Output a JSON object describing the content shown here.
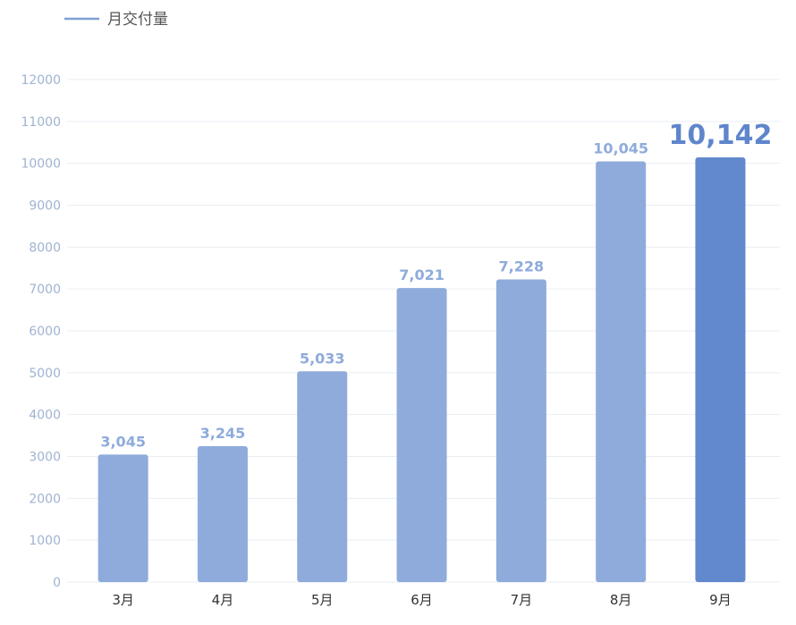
{
  "colors": {
    "bar": "#8eabdb",
    "bar_highlight": "#6289cd",
    "label": "#8eabdb",
    "label_highlight": "#5f86cc",
    "grid": "#e9edf3",
    "legend_line": "#7f9fd6"
  },
  "chart_data": {
    "type": "bar",
    "legend": {
      "label": "月交付量",
      "position": "top-left"
    },
    "categories": [
      "3月",
      "4月",
      "5月",
      "6月",
      "7月",
      "8月",
      "9月"
    ],
    "series": [
      {
        "name": "月交付量",
        "values": [
          3045,
          3245,
          5033,
          7021,
          7228,
          10045,
          10142
        ],
        "labels": [
          "3,045",
          "3,245",
          "5,033",
          "7,021",
          "7,228",
          "10,045",
          "10,142"
        ]
      }
    ],
    "highlight_index": 6,
    "yticks": [
      0,
      1000,
      2000,
      3000,
      4000,
      5000,
      6000,
      7000,
      8000,
      9000,
      10000,
      11000,
      12000
    ],
    "ylim": [
      0,
      12000
    ],
    "grid": true
  }
}
